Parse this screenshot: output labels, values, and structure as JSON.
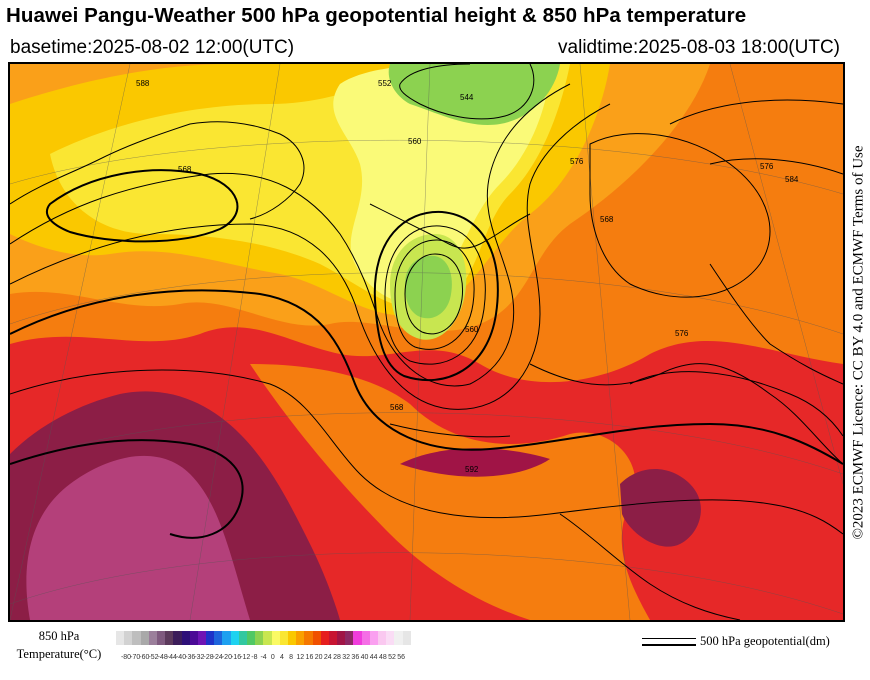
{
  "header": {
    "title": "Huawei Pangu-Weather 500 hPa geopotential height & 850 hPa temperature",
    "basetime": "basetime:2025-08-02 12:00(UTC)",
    "validtime": "validtime:2025-08-03 18:00(UTC)"
  },
  "attribution": "©2023 ECMWF Licence: CC BY 4.0 and ECMWF Terms of Use",
  "legend": {
    "temperature_label_line1": "850 hPa",
    "temperature_label_line2": "Temperature(°C)",
    "contour_label": "500 hPa geopotential(dm)",
    "ticks": [
      "-80",
      "-70",
      "-60",
      "-52",
      "-48",
      "-44",
      "-40",
      "-36",
      "-32",
      "-28",
      "-24",
      "-20",
      "-16",
      "-12",
      "-8",
      "-4",
      "0",
      "4",
      "8",
      "12",
      "16",
      "20",
      "24",
      "28",
      "32",
      "36",
      "40",
      "44",
      "48",
      "52",
      "56"
    ],
    "colors": [
      "#e6e6e6",
      "#d2d2d2",
      "#bebebe",
      "#a9a9a9",
      "#9b7f9b",
      "#7f5a7f",
      "#5c3a5c",
      "#3c1d5a",
      "#2d0f78",
      "#4b0a96",
      "#6e14b4",
      "#1e32c8",
      "#1e64dc",
      "#1ea0f0",
      "#1ed2f0",
      "#32c8a0",
      "#50c864",
      "#8cd250",
      "#c8e650",
      "#fafa64",
      "#fae632",
      "#fac800",
      "#faa000",
      "#f57800",
      "#f05000",
      "#e61e1e",
      "#c81432",
      "#a01446",
      "#8c2864",
      "#f03cdc",
      "#f56ee6",
      "#faa0f0",
      "#fac8f0",
      "#fadcf5",
      "#f0f0f0",
      "#e6e6e6"
    ],
    "map_colors": {
      "hot_magenta": "#b4407a",
      "dark_maroon": "#8c1e46",
      "red": "#e62828",
      "red_orange": "#f04c1e",
      "orange": "#f57d0f",
      "light_orange": "#faa019",
      "gold": "#fac800",
      "yellow": "#fae632",
      "pale_yellow": "#fafa78",
      "light_green": "#c8e650",
      "green": "#8cd250"
    }
  },
  "contours": {
    "labels": [
      "576",
      "584",
      "560",
      "544",
      "568",
      "552",
      "588",
      "592"
    ]
  }
}
